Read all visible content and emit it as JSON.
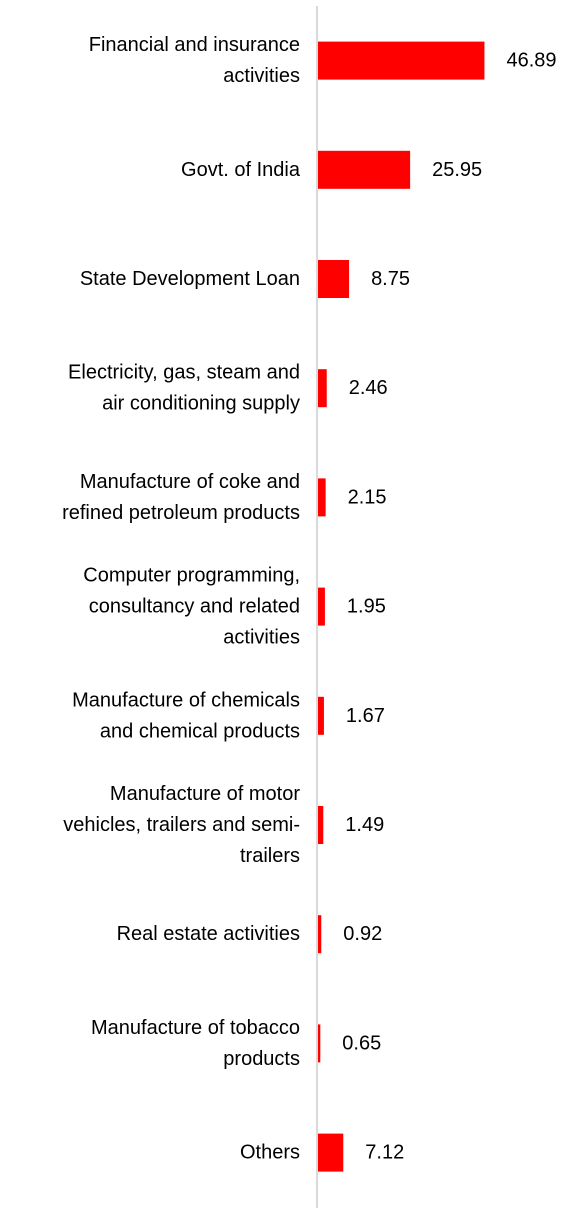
{
  "chart_data": {
    "type": "bar",
    "orientation": "horizontal",
    "title": "",
    "xlabel": "",
    "ylabel": "",
    "categories": [
      "Financial and insurance activities",
      "Govt. of India",
      "State Development Loan",
      "Electricity, gas, steam and air conditioning supply",
      "Manufacture of coke and refined petroleum products",
      "Computer programming, consultancy and related activities",
      "Manufacture of chemicals and chemical products",
      "Manufacture of motor vehicles, trailers and semi-trailers",
      "Real estate activities",
      "Manufacture of tobacco products",
      "Others"
    ],
    "category_label_lines": [
      [
        "Financial and insurance",
        "activities"
      ],
      [
        "Govt. of India"
      ],
      [
        "State Development Loan"
      ],
      [
        "Electricity, gas, steam and",
        "air conditioning supply"
      ],
      [
        "Manufacture of coke and",
        "refined petroleum products"
      ],
      [
        "Computer programming,",
        "consultancy and related",
        "activities"
      ],
      [
        "Manufacture of chemicals",
        "and chemical products"
      ],
      [
        "Manufacture of motor",
        "vehicles, trailers and semi-",
        "trailers"
      ],
      [
        "Real estate activities"
      ],
      [
        "Manufacture of tobacco",
        "products"
      ],
      [
        "Others"
      ]
    ],
    "values": [
      46.89,
      25.95,
      8.75,
      2.46,
      2.15,
      1.95,
      1.67,
      1.49,
      0.92,
      0.65,
      7.12
    ],
    "value_labels": [
      "46.89",
      "25.95",
      "8.75",
      "2.46",
      "2.15",
      "1.95",
      "1.67",
      "1.49",
      "0.92",
      "0.65",
      "7.12"
    ],
    "xlim": [
      0,
      50
    ],
    "grid": false,
    "legend": "none",
    "colors": {
      "bar": "#ff0000",
      "axis": "#d9d9d9",
      "text": "#000000"
    }
  }
}
